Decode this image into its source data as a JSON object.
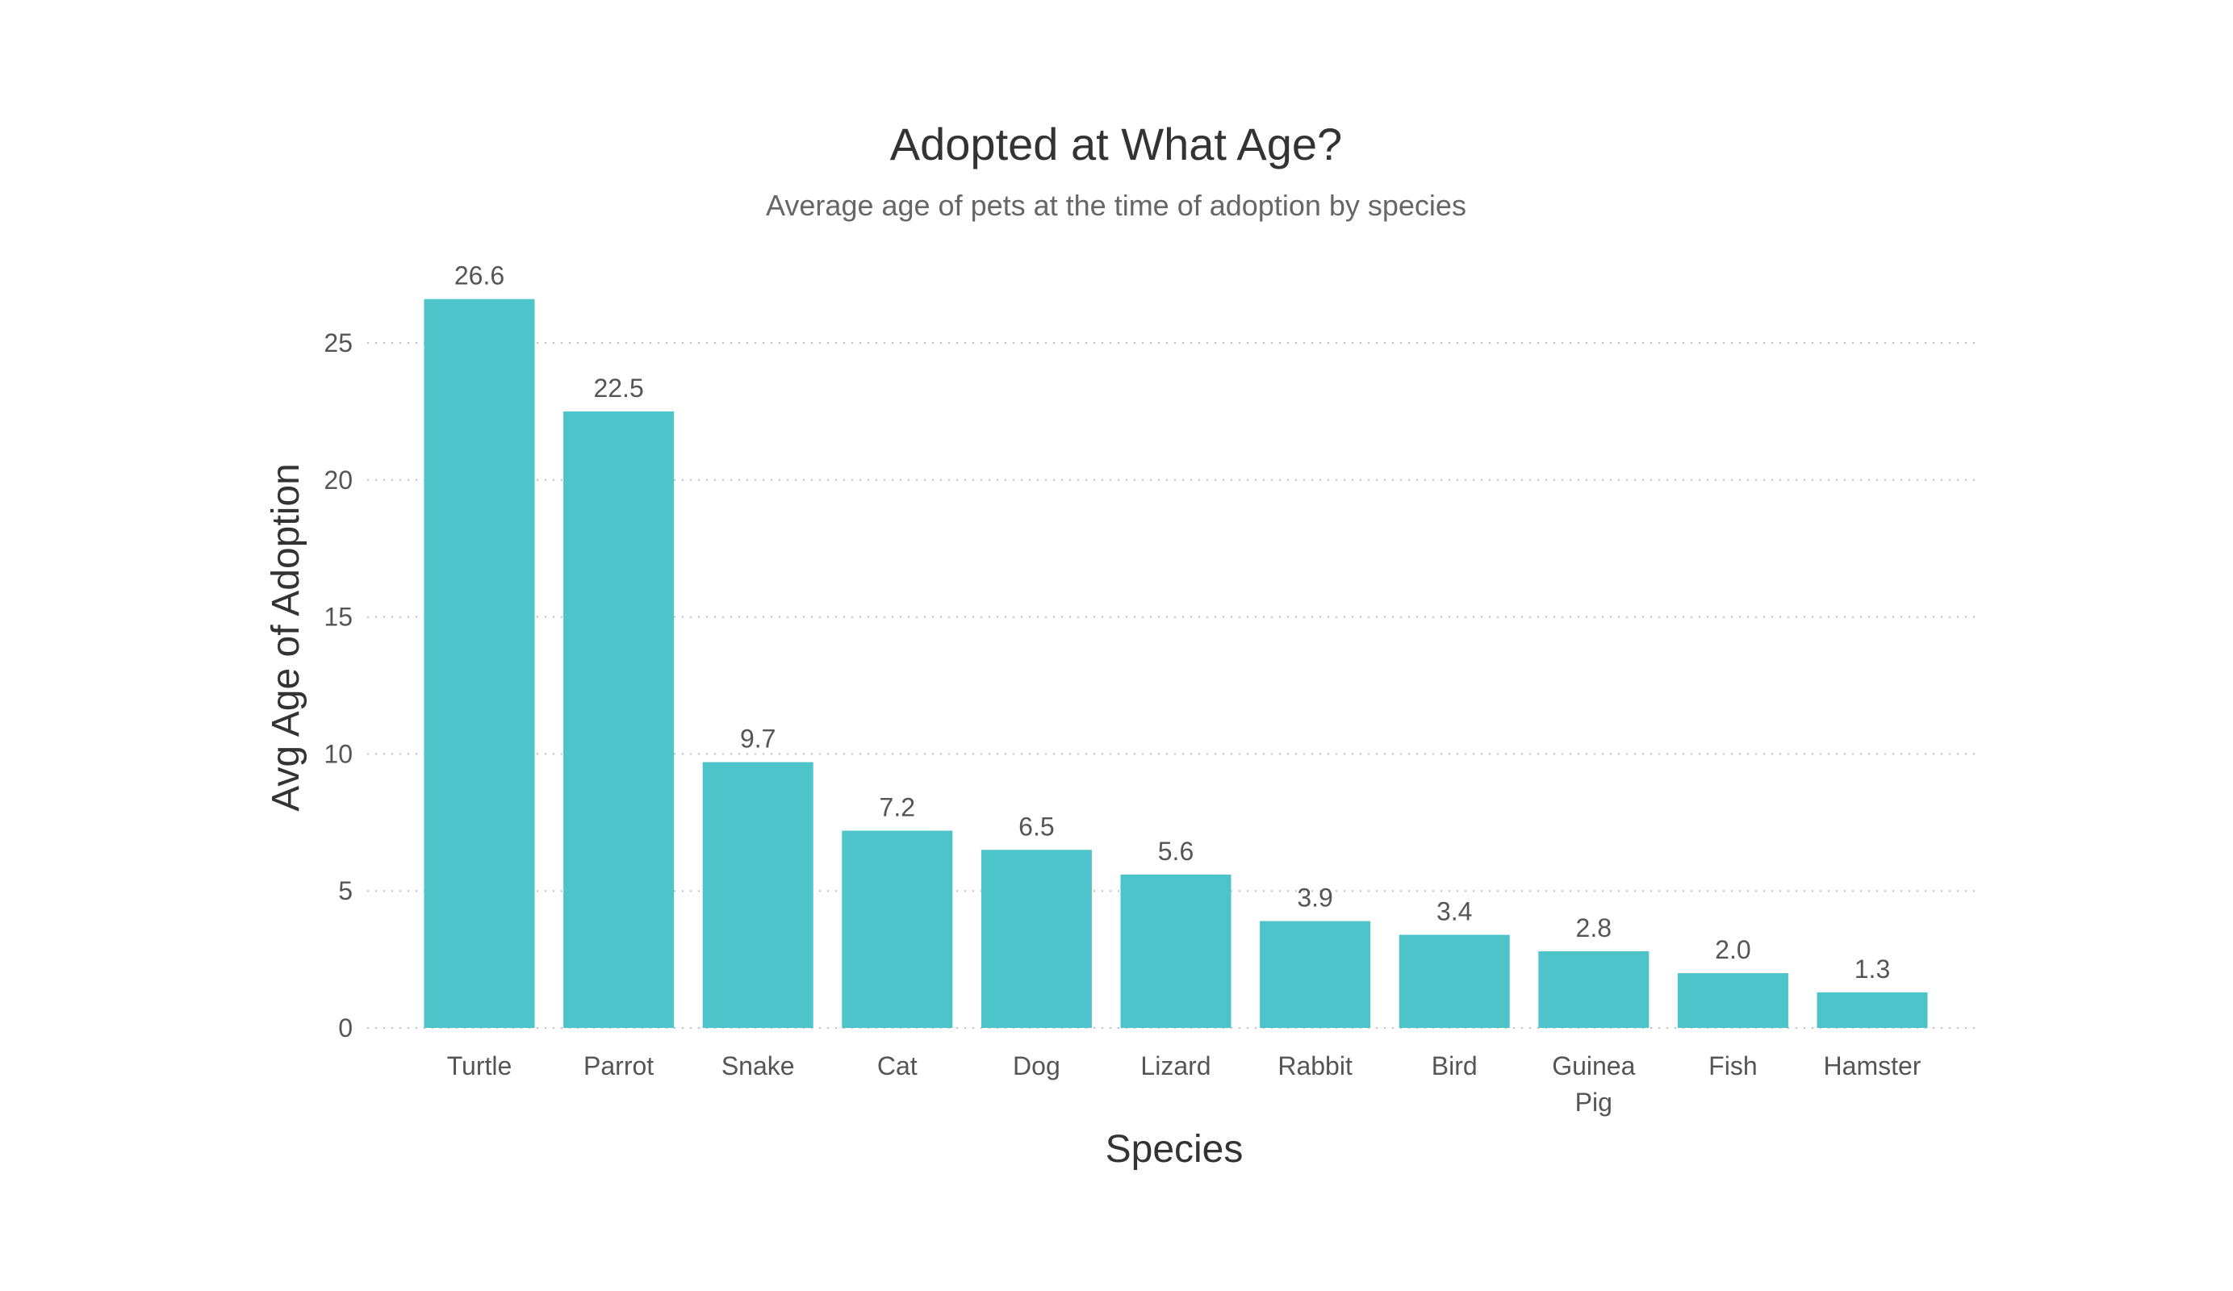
{
  "chart_data": {
    "type": "bar",
    "title": "Adopted at What Age?",
    "subtitle": "Average age of pets at the time of adoption by species",
    "xlabel": "Species",
    "ylabel": "Avg Age of Adoption",
    "categories": [
      "Turtle",
      "Parrot",
      "Snake",
      "Cat",
      "Dog",
      "Lizard",
      "Rabbit",
      "Bird",
      "Guinea Pig",
      "Fish",
      "Hamster"
    ],
    "values": [
      26.6,
      22.5,
      9.7,
      7.2,
      6.5,
      5.6,
      3.9,
      3.4,
      2.8,
      2.0,
      1.3
    ],
    "data_labels": [
      "26.6",
      "22.5",
      "9.7",
      "7.2",
      "6.5",
      "5.6",
      "3.9",
      "3.4",
      "2.8",
      "2.0",
      "1.3"
    ],
    "yticks": [
      0,
      5,
      10,
      15,
      20,
      25
    ],
    "ylim": [
      0,
      27
    ],
    "grid": "horizontal dotted",
    "legend": "none",
    "bar_color": "#4cc4c9"
  }
}
